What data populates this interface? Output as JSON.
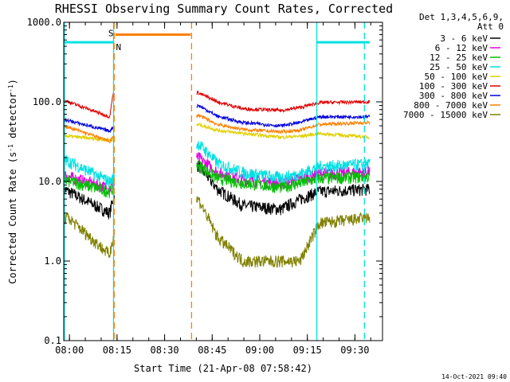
{
  "chart_data": {
    "type": "line",
    "title": "RHESSI Observing Summary Count Rates, Corrected",
    "xlabel": "Start Time (21-Apr-08 07:58:42)",
    "ylabel_main": "Corrected Count Rate (s",
    "ylabel_sup1": "-1",
    "ylabel_mid": " detector",
    "ylabel_sup2": "-1",
    "ylabel_end": ")",
    "y_scale": "log",
    "ylim": [
      0.1,
      1000
    ],
    "xlim_minutes": [
      -0.5,
      100
    ],
    "x_start_time": "07:58:42",
    "x_ticks": [
      {
        "m": 1.3,
        "label": "08:00"
      },
      {
        "m": 16.3,
        "label": "08:15"
      },
      {
        "m": 31.3,
        "label": "08:30"
      },
      {
        "m": 46.3,
        "label": "08:45"
      },
      {
        "m": 61.3,
        "label": "09:00"
      },
      {
        "m": 76.3,
        "label": "09:15"
      },
      {
        "m": 91.3,
        "label": "09:30"
      }
    ],
    "y_ticks": [
      {
        "v": 1000,
        "label": "1000.0"
      },
      {
        "v": 100,
        "label": "100.0"
      },
      {
        "v": 10,
        "label": "10.0"
      },
      {
        "v": 1,
        "label": "1.0"
      },
      {
        "v": 0.1,
        "label": "0.1"
      }
    ],
    "legend_placement": "right",
    "legend_header": [
      "Det 1,3,4,5,6,9,",
      "Att 0"
    ],
    "footer_date": "14-Oct-2021 09:40",
    "series": [
      {
        "name": "3 - 6 keV",
        "color": "#000000",
        "values": [
          [
            -0.5,
            8
          ],
          [
            1,
            7.5
          ],
          [
            14,
            4
          ],
          [
            15,
            6
          ],
          [
            42,
            16
          ],
          [
            48,
            8
          ],
          [
            56,
            5
          ],
          [
            68,
            4.5
          ],
          [
            74,
            6
          ],
          [
            80,
            7.5
          ],
          [
            96,
            8
          ]
        ]
      },
      {
        "name": "6 - 12 keV",
        "color": "#e000e0",
        "values": [
          [
            -0.5,
            12
          ],
          [
            1,
            11.5
          ],
          [
            14,
            8.2
          ],
          [
            15,
            9
          ],
          [
            42,
            20
          ],
          [
            48,
            13
          ],
          [
            56,
            10.5
          ],
          [
            68,
            9.5
          ],
          [
            74,
            10.8
          ],
          [
            80,
            12.5
          ],
          [
            96,
            13.2
          ]
        ]
      },
      {
        "name": "12 - 25 keV",
        "color": "#00c000",
        "values": [
          [
            -0.5,
            10.5
          ],
          [
            1,
            10.2
          ],
          [
            14,
            7.5
          ],
          [
            15,
            8.2
          ],
          [
            42,
            16
          ],
          [
            48,
            11
          ],
          [
            56,
            9.6
          ],
          [
            68,
            8.5
          ],
          [
            74,
            9.5
          ],
          [
            80,
            11
          ],
          [
            96,
            11.5
          ]
        ]
      },
      {
        "name": "25 - 50 keV",
        "color": "#00e0e0",
        "values": [
          [
            -0.5,
            19
          ],
          [
            1,
            18
          ],
          [
            14,
            10
          ],
          [
            15,
            11
          ],
          [
            42,
            30
          ],
          [
            48,
            17
          ],
          [
            56,
            13
          ],
          [
            68,
            11.2
          ],
          [
            74,
            12.5
          ],
          [
            80,
            15.5
          ],
          [
            96,
            16.5
          ]
        ]
      },
      {
        "name": "50 - 100 keV",
        "color": "#e0d000",
        "values": [
          [
            -0.5,
            38
          ],
          [
            1,
            37
          ],
          [
            14,
            33
          ],
          [
            15,
            34
          ],
          [
            42,
            52
          ],
          [
            48,
            44
          ],
          [
            56,
            40
          ],
          [
            68,
            36
          ],
          [
            74,
            37
          ],
          [
            80,
            40
          ],
          [
            96,
            36
          ]
        ]
      },
      {
        "name": "100 - 300 keV",
        "color": "#e00000",
        "values": [
          [
            -0.5,
            105
          ],
          [
            1,
            100
          ],
          [
            14,
            65
          ],
          [
            15,
            125
          ],
          [
            42,
            130
          ],
          [
            48,
            100
          ],
          [
            56,
            82
          ],
          [
            68,
            78
          ],
          [
            74,
            85
          ],
          [
            80,
            98
          ],
          [
            96,
            100
          ]
        ]
      },
      {
        "name": "300 - 800 keV",
        "color": "#0000e0",
        "values": [
          [
            -0.5,
            60
          ],
          [
            1,
            58
          ],
          [
            14,
            43
          ],
          [
            15,
            48
          ],
          [
            42,
            90
          ],
          [
            48,
            66
          ],
          [
            56,
            55
          ],
          [
            68,
            50
          ],
          [
            74,
            55
          ],
          [
            80,
            65
          ],
          [
            96,
            65
          ]
        ]
      },
      {
        "name": "800 - 7000 keV",
        "color": "#ff8000",
        "values": [
          [
            -0.5,
            50
          ],
          [
            1,
            48
          ],
          [
            14,
            32
          ],
          [
            15,
            36
          ],
          [
            42,
            68
          ],
          [
            48,
            52
          ],
          [
            56,
            45
          ],
          [
            68,
            42
          ],
          [
            74,
            44
          ],
          [
            80,
            52
          ],
          [
            96,
            55
          ]
        ]
      },
      {
        "name": "7000 - 15000 keV",
        "color": "#808000",
        "values": [
          [
            -0.5,
            3.5
          ],
          [
            1,
            3.5
          ],
          [
            14,
            1.2
          ],
          [
            15,
            2
          ],
          [
            42,
            6
          ],
          [
            48,
            2
          ],
          [
            56,
            1
          ],
          [
            68,
            1
          ],
          [
            74,
            1
          ],
          [
            80,
            3
          ],
          [
            96,
            3.5
          ]
        ]
      }
    ],
    "saa_flag": {
      "label": "S",
      "color": "#ff8000",
      "value": 700,
      "start": 15.8,
      "end": 39.5
    },
    "night_flag": {
      "label": "N",
      "color": "#00e0e0",
      "value": 560,
      "segments": [
        [
          -0.5,
          15.2
        ],
        [
          79.3,
          96
        ]
      ]
    },
    "vertical_markers": [
      {
        "m": -0.3,
        "color": "#00e0e0",
        "style": "solid"
      },
      {
        "m": 15.2,
        "color": "#00e0e0",
        "style": "solid"
      },
      {
        "m": 15.4,
        "color": "#ff8000",
        "style": "dashed"
      },
      {
        "m": 39.8,
        "color": "#ff8000",
        "style": "dashed"
      },
      {
        "m": 79.3,
        "color": "#00e0e0",
        "style": "solid"
      },
      {
        "m": 94.3,
        "color": "#00e0e0",
        "style": "dashed"
      }
    ],
    "gaps_minutes": [
      [
        15.5,
        41.3
      ]
    ]
  }
}
